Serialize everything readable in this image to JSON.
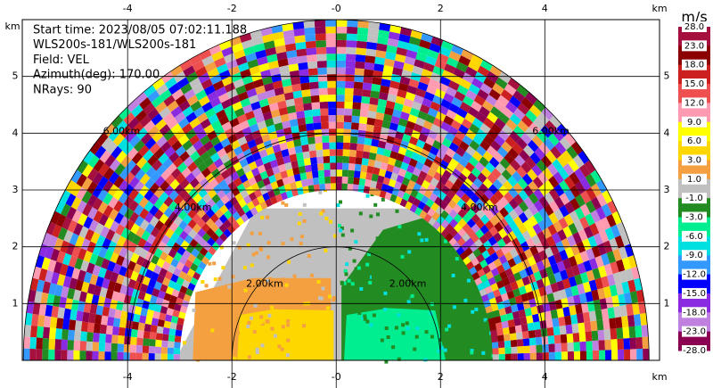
{
  "chart_data": {
    "type": "rhi",
    "annotations": [
      "Start time: 2023/08/05 07:02:11.188",
      "WLS200s-181/WLS200s-181",
      "Field: VEL",
      "Azimuth(deg): 170.00",
      "NRays: 90"
    ],
    "xlabel": "km",
    "ylabel": "km",
    "xlim": [
      -6.02,
      6.2
    ],
    "ylim": [
      0,
      6.0
    ],
    "xticks": [
      -4,
      -2,
      {
        "value": 0,
        "label": "-0"
      },
      2,
      4
    ],
    "yticks": [
      1,
      2,
      3,
      4,
      5
    ],
    "grid": true,
    "rings": [
      {
        "value": 2,
        "label": "2.00km"
      },
      {
        "value": 4,
        "label": "4.00km"
      },
      {
        "value": 6,
        "label": "6.00km"
      }
    ],
    "colorbar": {
      "title": "m/s",
      "levels": [
        {
          "value": 28,
          "label": "28.0"
        },
        {
          "value": 23,
          "label": "23.0"
        },
        {
          "value": 18,
          "label": "18.0"
        },
        {
          "value": 15,
          "label": "15.0"
        },
        {
          "value": 12,
          "label": "12.0"
        },
        {
          "value": 9,
          "label": "9.0"
        },
        {
          "value": 6,
          "label": "6.0"
        },
        {
          "value": 3,
          "label": "3.0"
        },
        {
          "value": 1,
          "label": "1.0"
        },
        {
          "value": -1,
          "label": "-1.0"
        },
        {
          "value": -3,
          "label": "-3.0"
        },
        {
          "value": -6,
          "label": "-6.0"
        },
        {
          "value": -9,
          "label": "-9.0"
        },
        {
          "value": -12,
          "label": "-12.0"
        },
        {
          "value": -15,
          "label": "-15.0"
        },
        {
          "value": -18,
          "label": "-18.0"
        },
        {
          "value": -23,
          "label": "-23.0"
        },
        {
          "value": -28,
          "label": "-28.0"
        }
      ],
      "colors": [
        "#a5103e",
        "#8b0000",
        "#cc1f1f",
        "#ee5050",
        "#ff9ab0",
        "#ffff00",
        "#ffd700",
        "#f4a040",
        "#c0c0c0",
        "#228b22",
        "#00ee90",
        "#00e0e0",
        "#3399ff",
        "#0000ff",
        "#8a2be2",
        "#c080e0",
        "#8b0050"
      ]
    }
  }
}
